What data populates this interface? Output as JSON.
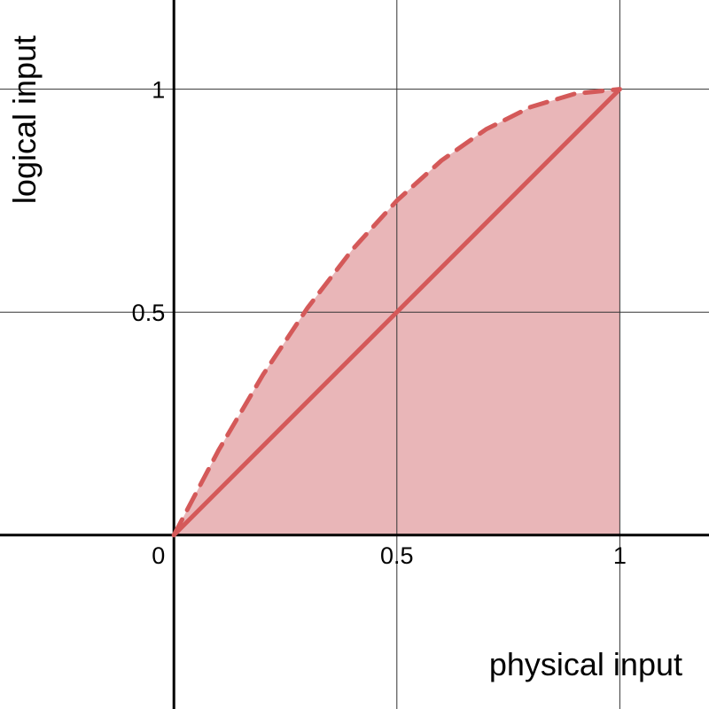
{
  "chart_data": {
    "type": "area",
    "xlabel": "physical input",
    "ylabel": "logical input",
    "xlim": [
      -0.39,
      1.2
    ],
    "ylim": [
      -0.39,
      1.2
    ],
    "grid": true,
    "x_ticks": [
      {
        "value": 0,
        "label": "0"
      },
      {
        "value": 0.5,
        "label": "0.5"
      },
      {
        "value": 1,
        "label": "1"
      }
    ],
    "y_ticks": [
      {
        "value": 0.5,
        "label": "0.5"
      },
      {
        "value": 1,
        "label": "1"
      }
    ],
    "series": [
      {
        "style": "dashed",
        "x": [
          0,
          0.1,
          0.2,
          0.3,
          0.4,
          0.5,
          0.6,
          0.7,
          0.8,
          0.9,
          1
        ],
        "y": [
          0,
          0.19,
          0.36,
          0.51,
          0.64,
          0.75,
          0.84,
          0.91,
          0.96,
          0.99,
          1
        ]
      },
      {
        "style": "solid",
        "x": [
          0,
          1
        ],
        "y": [
          0,
          1
        ]
      }
    ],
    "colors": {
      "line": "#d45959",
      "fill": "#e8b2b4",
      "grid": "#333333",
      "axis": "#000000"
    }
  }
}
